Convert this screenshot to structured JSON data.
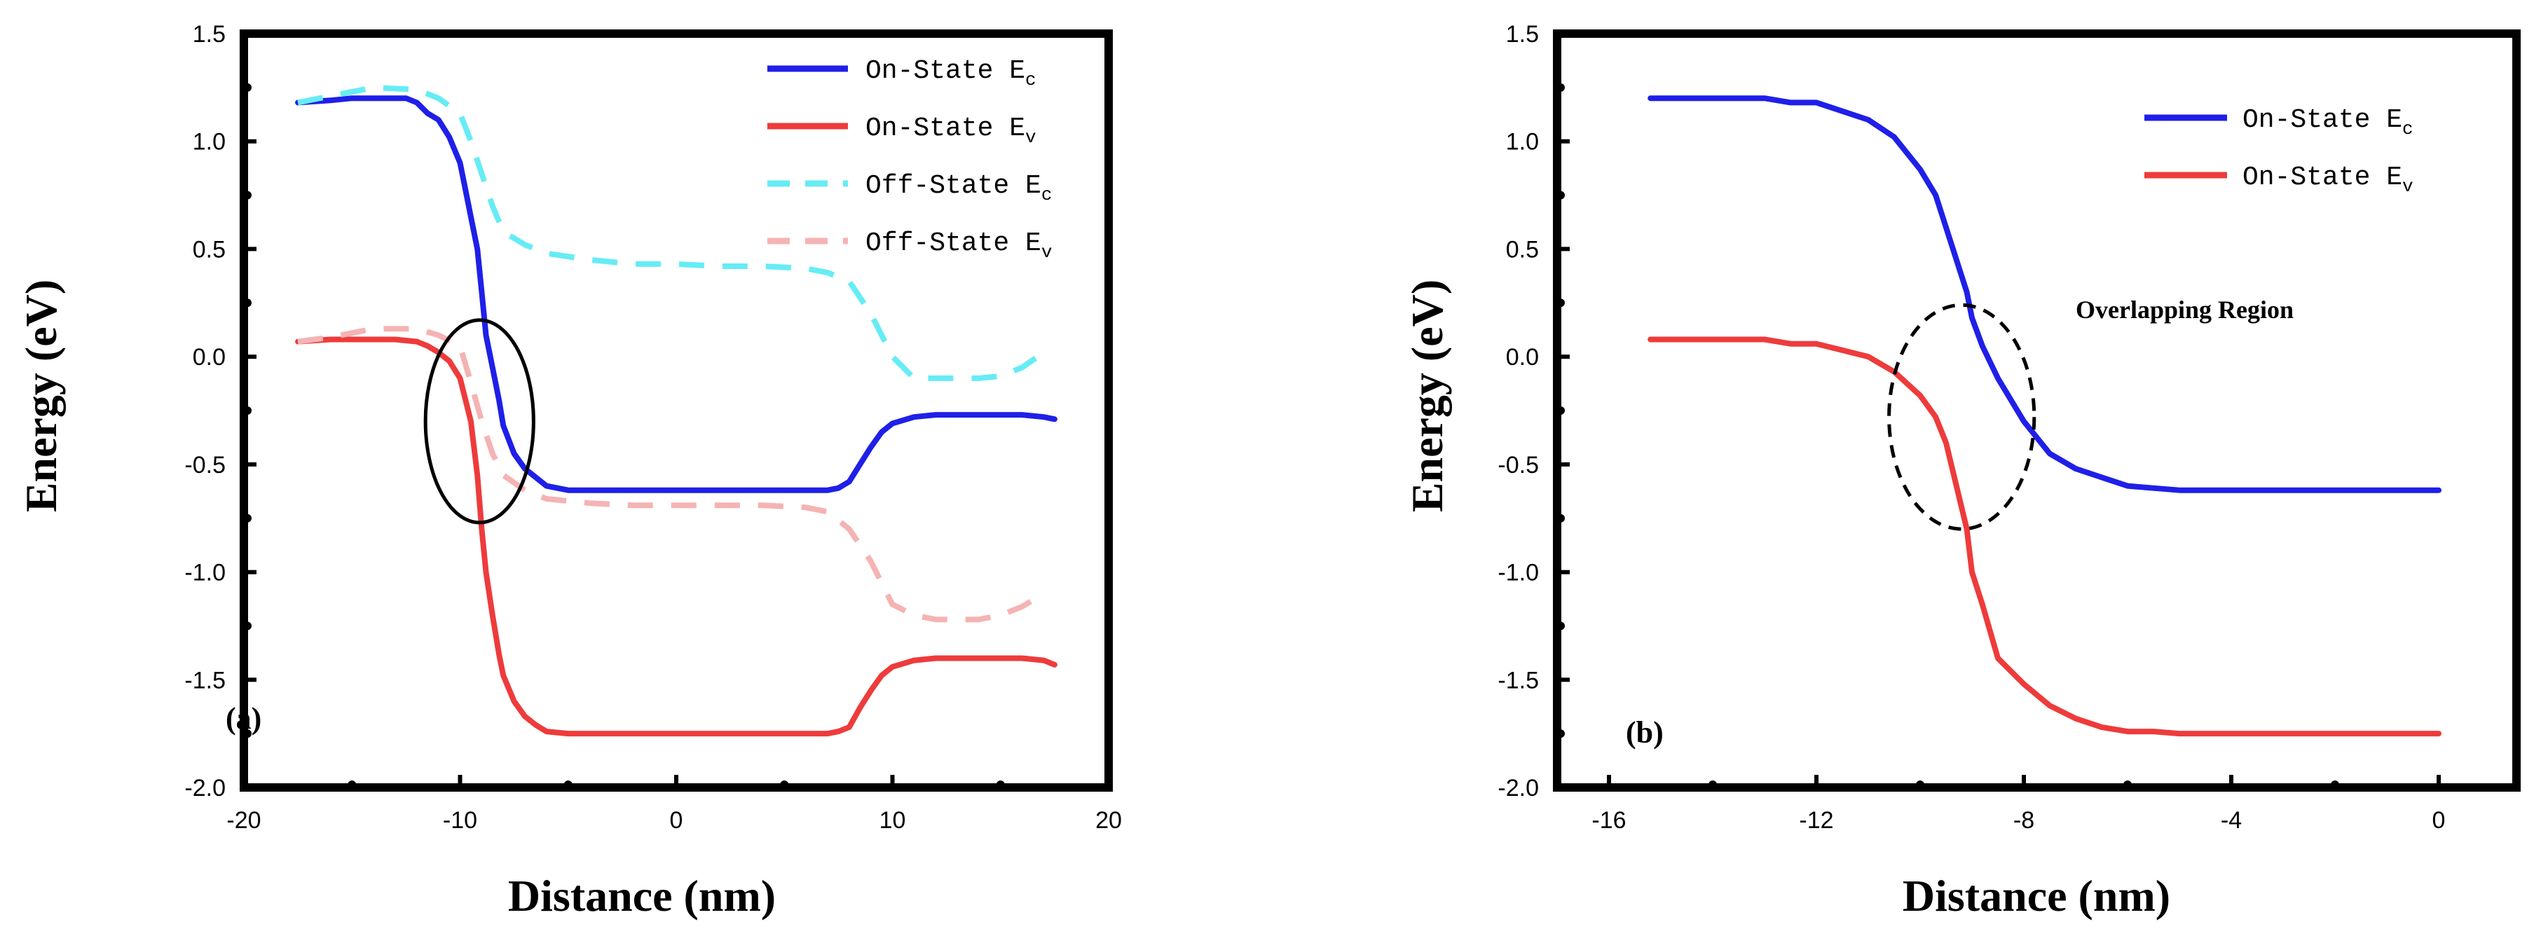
{
  "chart_data": [
    {
      "type": "line",
      "panel_label": "(a)",
      "xlabel": "Distance (nm)",
      "ylabel": "Energy (eV)",
      "xlim": [
        -20,
        20
      ],
      "ylim": [
        -2.0,
        1.5
      ],
      "xticks": [
        -20,
        -10,
        0,
        10,
        20
      ],
      "xtick_labels": [
        "-20",
        "-10",
        "0",
        "10",
        "20"
      ],
      "yticks": [
        -2.0,
        -1.5,
        -1.0,
        -0.5,
        0.0,
        0.5,
        1.0,
        1.5
      ],
      "ytick_labels": [
        "-2.0",
        "-1.5",
        "-1.0",
        "-0.5",
        "0.0",
        "0.5",
        "1.0",
        "1.5"
      ],
      "grid": false,
      "legend_position": "top-right",
      "series": [
        {
          "name": "On-State E",
          "subscript": "c",
          "color": "#1f1fe8",
          "style": "solid",
          "x": [
            -17.5,
            -16,
            -15,
            -14,
            -13,
            -12.5,
            -12,
            -11.5,
            -11,
            -10.5,
            -10,
            -9.8,
            -9.5,
            -9.2,
            -9,
            -8.8,
            -8.5,
            -8.2,
            -8,
            -7.5,
            -7,
            -6,
            -5,
            -3,
            0,
            3,
            5,
            7,
            7.5,
            8,
            8.5,
            9,
            9.5,
            10,
            11,
            12,
            14,
            16,
            17,
            17.5
          ],
          "y": [
            1.18,
            1.19,
            1.2,
            1.2,
            1.2,
            1.2,
            1.18,
            1.13,
            1.1,
            1.02,
            0.9,
            0.8,
            0.65,
            0.5,
            0.3,
            0.1,
            -0.05,
            -0.2,
            -0.32,
            -0.45,
            -0.52,
            -0.6,
            -0.62,
            -0.62,
            -0.62,
            -0.62,
            -0.62,
            -0.62,
            -0.61,
            -0.58,
            -0.5,
            -0.42,
            -0.35,
            -0.31,
            -0.28,
            -0.27,
            -0.27,
            -0.27,
            -0.28,
            -0.29
          ]
        },
        {
          "name": "On-State E",
          "subscript": "v",
          "color": "#ee3b3b",
          "style": "solid",
          "x": [
            -17.5,
            -16,
            -15,
            -14,
            -13,
            -12,
            -11.5,
            -11,
            -10.5,
            -10,
            -9.5,
            -9.2,
            -9,
            -8.8,
            -8.5,
            -8.2,
            -8,
            -7.5,
            -7,
            -6.5,
            -6,
            -5,
            -3,
            0,
            3,
            5,
            7,
            7.5,
            8,
            8.5,
            9,
            9.5,
            10,
            11,
            12,
            14,
            16,
            17,
            17.5
          ],
          "y": [
            0.07,
            0.08,
            0.08,
            0.08,
            0.08,
            0.07,
            0.05,
            0.02,
            -0.02,
            -0.1,
            -0.3,
            -0.55,
            -0.8,
            -1.0,
            -1.2,
            -1.38,
            -1.48,
            -1.6,
            -1.67,
            -1.71,
            -1.74,
            -1.75,
            -1.75,
            -1.75,
            -1.75,
            -1.75,
            -1.75,
            -1.74,
            -1.72,
            -1.63,
            -1.55,
            -1.48,
            -1.44,
            -1.41,
            -1.4,
            -1.4,
            -1.4,
            -1.41,
            -1.43
          ]
        },
        {
          "name": "Off-State E",
          "subscript": "c",
          "color": "#66ecf5",
          "style": "dashed",
          "x": [
            -17.5,
            -16,
            -14,
            -12,
            -11,
            -10,
            -9.5,
            -9,
            -8.5,
            -8,
            -7,
            -6,
            -4,
            -2,
            0,
            2,
            4,
            6,
            7,
            8,
            9,
            10,
            11,
            12,
            13,
            14,
            15,
            16,
            17
          ],
          "y": [
            1.18,
            1.21,
            1.25,
            1.24,
            1.2,
            1.13,
            1.0,
            0.85,
            0.7,
            0.58,
            0.52,
            0.48,
            0.45,
            0.43,
            0.43,
            0.42,
            0.42,
            0.41,
            0.39,
            0.35,
            0.2,
            0.0,
            -0.1,
            -0.1,
            -0.1,
            -0.1,
            -0.09,
            -0.05,
            0.02
          ]
        },
        {
          "name": "Off-State E",
          "subscript": "v",
          "color": "#f5b3b3",
          "style": "dashed",
          "x": [
            -17.5,
            -16,
            -14,
            -12,
            -11,
            -10,
            -9.5,
            -9,
            -8.5,
            -8,
            -7,
            -6,
            -4,
            -2,
            0,
            2,
            4,
            6,
            7,
            8,
            9,
            10,
            11,
            12,
            13,
            14,
            15,
            16,
            17
          ],
          "y": [
            0.07,
            0.09,
            0.13,
            0.13,
            0.1,
            0.05,
            -0.12,
            -0.3,
            -0.45,
            -0.55,
            -0.62,
            -0.66,
            -0.68,
            -0.69,
            -0.69,
            -0.69,
            -0.69,
            -0.7,
            -0.72,
            -0.8,
            -0.95,
            -1.15,
            -1.2,
            -1.22,
            -1.22,
            -1.22,
            -1.2,
            -1.16,
            -1.1
          ]
        }
      ],
      "annotations": [
        {
          "kind": "ellipse",
          "style": "solid",
          "cx": -9.1,
          "cy": -0.3,
          "rx": 2.5,
          "ry": 0.47
        }
      ]
    },
    {
      "type": "line",
      "panel_label": "(b)",
      "xlabel": "Distance (nm)",
      "ylabel": "Energy (eV)",
      "xlim": [
        -17,
        1.5
      ],
      "ylim": [
        -2.0,
        1.5
      ],
      "xticks": [
        -16,
        -12,
        -8,
        -4,
        0
      ],
      "xtick_labels": [
        "-16",
        "-12",
        "-8",
        "-4",
        "0"
      ],
      "yticks": [
        -2.0,
        -1.5,
        -1.0,
        -0.5,
        0.0,
        0.5,
        1.0,
        1.5
      ],
      "ytick_labels": [
        "-2.0",
        "-1.5",
        "-1.0",
        "-0.5",
        "0.0",
        "0.5",
        "1.0",
        "1.5"
      ],
      "grid": false,
      "legend_position": "top-right",
      "series": [
        {
          "name": "On-State E",
          "subscript": "c",
          "color": "#1f1fe8",
          "style": "solid",
          "x": [
            -15.2,
            -14,
            -13.5,
            -13,
            -12.5,
            -12,
            -11.5,
            -11,
            -10.5,
            -10,
            -9.7,
            -9.5,
            -9.3,
            -9.1,
            -9,
            -8.8,
            -8.5,
            -8,
            -7.5,
            -7,
            -6.5,
            -6,
            -5.5,
            -5,
            -3,
            0
          ],
          "y": [
            1.2,
            1.2,
            1.2,
            1.2,
            1.18,
            1.18,
            1.14,
            1.1,
            1.02,
            0.87,
            0.75,
            0.6,
            0.45,
            0.3,
            0.18,
            0.05,
            -0.1,
            -0.3,
            -0.45,
            -0.52,
            -0.56,
            -0.6,
            -0.61,
            -0.62,
            -0.62,
            -0.62
          ]
        },
        {
          "name": "On-State E",
          "subscript": "v",
          "color": "#ee3b3b",
          "style": "solid",
          "x": [
            -15.2,
            -14,
            -13,
            -12.5,
            -12,
            -11.5,
            -11,
            -10.5,
            -10,
            -9.7,
            -9.5,
            -9.3,
            -9.1,
            -9,
            -8.8,
            -8.5,
            -8,
            -7.5,
            -7,
            -6.5,
            -6,
            -5.5,
            -5,
            -3,
            0
          ],
          "y": [
            0.08,
            0.08,
            0.08,
            0.06,
            0.06,
            0.03,
            0.0,
            -0.07,
            -0.18,
            -0.28,
            -0.4,
            -0.6,
            -0.8,
            -1.0,
            -1.15,
            -1.4,
            -1.52,
            -1.62,
            -1.68,
            -1.72,
            -1.74,
            -1.74,
            -1.75,
            -1.75,
            -1.75
          ]
        }
      ],
      "annotations": [
        {
          "kind": "ellipse",
          "style": "dashed",
          "cx": -9.2,
          "cy": -0.28,
          "rx": 1.4,
          "ry": 0.52
        },
        {
          "kind": "text",
          "text": "Overlapping Region",
          "x": -7.0,
          "y": 0.18
        }
      ]
    }
  ]
}
